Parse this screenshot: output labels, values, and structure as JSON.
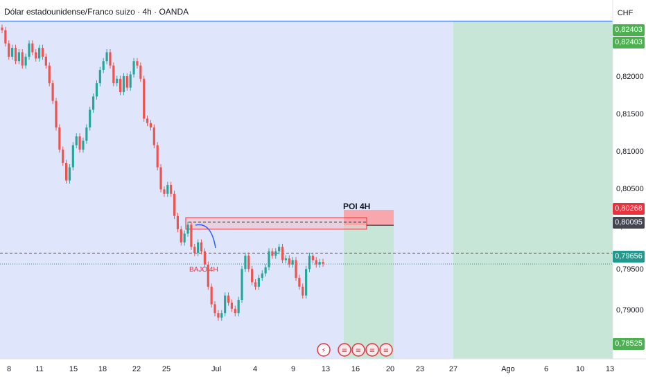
{
  "header": {
    "title": "Dólar estadounidense/Franco suizo · 4h · OANDA",
    "currency": "CHF"
  },
  "colors": {
    "up": "#26a69a",
    "down": "#ef5350",
    "range_bg": "#dfe6fb",
    "target_zone": "#c8e6d8",
    "poi_box": "#f8a7ad",
    "tag_green": "#4caf50",
    "tag_red": "#e8323e",
    "tag_dark": "#434651",
    "tag_teal": "#22998e",
    "hline_blue": "#2962ff"
  },
  "price_axis": {
    "labels": [
      "0,82000",
      "0,81500",
      "0,81000",
      "0,80500",
      "0,80000",
      "0,79500",
      "0,79000"
    ],
    "tags": [
      {
        "label": "0,82403",
        "color": "tag_green"
      },
      {
        "label": "0,82403",
        "color": "tag_green"
      },
      {
        "label": "0,80268",
        "color": "tag_red"
      },
      {
        "label": "0,80095",
        "color": "tag_dark"
      },
      {
        "label": "0,79656",
        "color": "tag_teal"
      },
      {
        "label": "0,78525",
        "color": "tag_green"
      }
    ]
  },
  "time_axis": {
    "labels": [
      "8",
      "11",
      "15",
      "18",
      "22",
      "25",
      "Jul",
      "4",
      "9",
      "13",
      "16",
      "20",
      "23",
      "27",
      "Ago",
      "6",
      "10",
      "13"
    ]
  },
  "annotations": {
    "poi_label": "POI 4H",
    "low_label": "BAJO 4H"
  },
  "chart_data": {
    "type": "candlestick",
    "symbol": "USDCHF",
    "timeframe": "4h",
    "y_range": [
      0.786,
      0.825
    ],
    "levels": {
      "upper_line": 0.82403,
      "poi_top": 0.80268,
      "poi_bottom": 0.80095,
      "dashed_red": 0.7978,
      "last_price": 0.79656,
      "target": 0.78525
    },
    "closes": [
      0.823,
      0.8215,
      0.82,
      0.821,
      0.8195,
      0.8205,
      0.819,
      0.82,
      0.8215,
      0.8205,
      0.8198,
      0.821,
      0.82,
      0.819,
      0.817,
      0.815,
      0.812,
      0.8095,
      0.808,
      0.806,
      0.8075,
      0.81,
      0.811,
      0.8095,
      0.8105,
      0.812,
      0.814,
      0.8155,
      0.817,
      0.8185,
      0.8195,
      0.8205,
      0.819,
      0.817,
      0.8175,
      0.816,
      0.8178,
      0.8165,
      0.818,
      0.8195,
      0.819,
      0.8175,
      0.813,
      0.8125,
      0.812,
      0.81,
      0.8075,
      0.805,
      0.8045,
      0.8055,
      0.8045,
      0.802,
      0.8005,
      0.799,
      0.8,
      0.801,
      0.7985,
      0.7978,
      0.799,
      0.798,
      0.7965,
      0.794,
      0.792,
      0.791,
      0.7905,
      0.791,
      0.793,
      0.7922,
      0.7915,
      0.791,
      0.7925,
      0.796,
      0.7975,
      0.796,
      0.7945,
      0.794,
      0.795,
      0.7955,
      0.7962,
      0.798,
      0.7975,
      0.798,
      0.7985,
      0.797,
      0.7972,
      0.7965,
      0.797,
      0.795,
      0.794,
      0.793,
      0.796,
      0.7975,
      0.797,
      0.7965,
      0.7968,
      0.7966
    ]
  }
}
